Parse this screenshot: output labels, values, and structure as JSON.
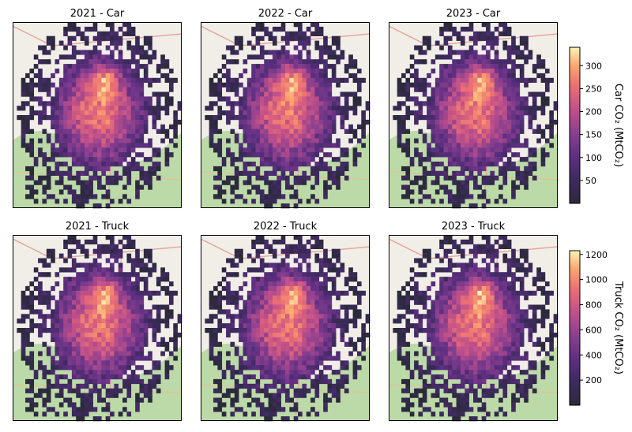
{
  "chart_data": {
    "type": "heatmap",
    "colormap": "magma",
    "background": "street map basemap",
    "panels": [
      {
        "title": "2021 - Car",
        "mode": "Car",
        "year": 2021
      },
      {
        "title": "2022 - Car",
        "mode": "Car",
        "year": 2022
      },
      {
        "title": "2023 - Car",
        "mode": "Car",
        "year": 2023
      },
      {
        "title": "2021 - Truck",
        "mode": "Truck",
        "year": 2021
      },
      {
        "title": "2022 - Truck",
        "mode": "Truck",
        "year": 2022
      },
      {
        "title": "2023 - Truck",
        "mode": "Truck",
        "year": 2023
      }
    ],
    "colorbars": [
      {
        "label": "Car CO₂ (MtCO₂)",
        "range": [
          0,
          340
        ],
        "ticks": [
          50,
          100,
          150,
          200,
          250,
          300
        ]
      },
      {
        "label": "Truck CO₂ (MtCO₂)",
        "range": [
          0,
          1230
        ],
        "ticks": [
          200,
          400,
          600,
          800,
          1000,
          1200
        ]
      }
    ]
  }
}
